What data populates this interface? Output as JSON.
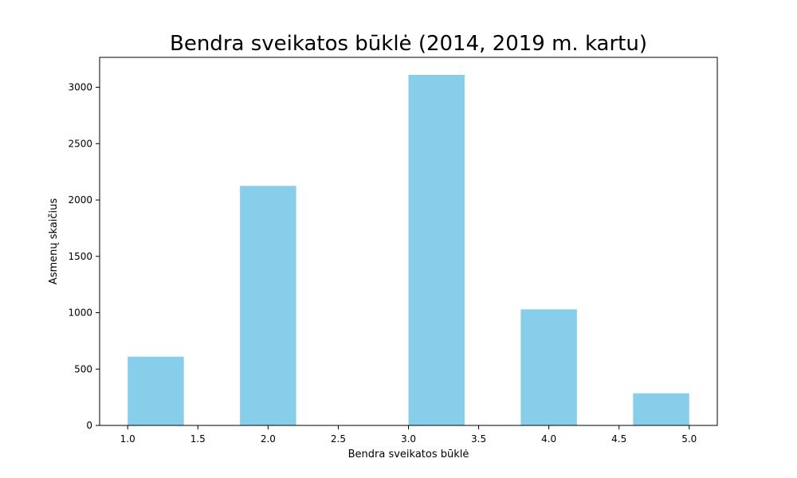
{
  "chart_data": {
    "type": "bar",
    "title": "Bendra sveikatos būklė (2014, 2019 m. kartu)",
    "xlabel": "Bendra sveikatos būklė",
    "ylabel": "Asmenų skaičius",
    "bins": [
      {
        "x0": 1.0,
        "x1": 1.4,
        "value": 610
      },
      {
        "x0": 1.4,
        "x1": 1.8,
        "value": 0
      },
      {
        "x0": 1.8,
        "x1": 2.2,
        "value": 2125
      },
      {
        "x0": 2.2,
        "x1": 2.6,
        "value": 0
      },
      {
        "x0": 2.6,
        "x1": 3.0,
        "value": 0
      },
      {
        "x0": 3.0,
        "x1": 3.4,
        "value": 3110
      },
      {
        "x0": 3.4,
        "x1": 3.8,
        "value": 0
      },
      {
        "x0": 3.8,
        "x1": 4.2,
        "value": 1030
      },
      {
        "x0": 4.2,
        "x1": 4.6,
        "value": 0
      },
      {
        "x0": 4.6,
        "x1": 5.0,
        "value": 285
      }
    ],
    "xlim": [
      0.8,
      5.2
    ],
    "ylim": [
      0,
      3265.5
    ],
    "xticks": [
      "1.0",
      "1.5",
      "2.0",
      "2.5",
      "3.0",
      "3.5",
      "4.0",
      "4.5",
      "5.0"
    ],
    "yticks": [
      "0",
      "500",
      "1000",
      "1500",
      "2000",
      "2500",
      "3000"
    ],
    "grid": false,
    "bar_color": "#87ceeb"
  }
}
